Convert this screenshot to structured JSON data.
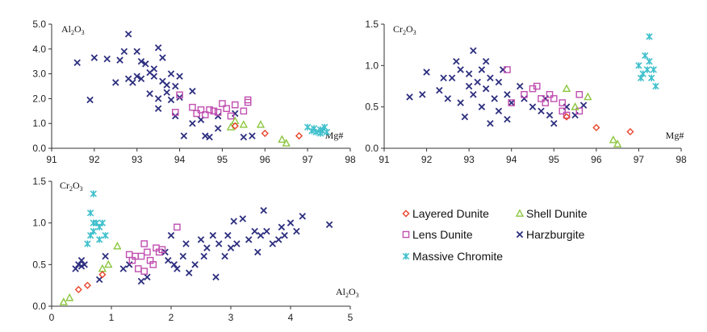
{
  "series_styles": {
    "layered": {
      "label": "Layered Dunite",
      "color": "#e8452a",
      "shape": "diamond"
    },
    "shell": {
      "label": "Shell Dunite",
      "color": "#8cc63f",
      "shape": "triangle"
    },
    "lens": {
      "label": "Lens Dunite",
      "color": "#c04fb0",
      "shape": "square"
    },
    "harz": {
      "label": "Harzburgite",
      "color": "#2e2f7f",
      "shape": "x"
    },
    "chromite": {
      "label": "Massive Chromite",
      "color": "#3fc0cc",
      "shape": "asterisk"
    }
  },
  "legend_order": [
    [
      "layered",
      "shell"
    ],
    [
      "lens",
      "harz"
    ],
    [
      "chromite"
    ]
  ],
  "chart_data": [
    {
      "id": "al2o3-vs-mg",
      "type": "scatter",
      "ylabel_main": "Al",
      "ylabel_sub1": "2",
      "ylabel_mid": "O",
      "ylabel_sub2": "3",
      "xlabel": "Mg#",
      "xlim": [
        91,
        98
      ],
      "ylim": [
        0,
        5
      ],
      "xticks": [
        "91",
        "92",
        "93",
        "94",
        "95",
        "96",
        "97",
        "98"
      ],
      "yticks": [
        "0.0",
        "1.0",
        "2.0",
        "3.0",
        "4.0",
        "5.0"
      ],
      "series": {
        "harz": [
          [
            91.6,
            3.45
          ],
          [
            91.9,
            1.95
          ],
          [
            92.0,
            3.65
          ],
          [
            92.3,
            3.6
          ],
          [
            92.5,
            2.65
          ],
          [
            92.6,
            3.55
          ],
          [
            92.7,
            3.9
          ],
          [
            92.8,
            2.8
          ],
          [
            92.8,
            4.6
          ],
          [
            92.9,
            2.65
          ],
          [
            93.0,
            3.9
          ],
          [
            93.0,
            2.9
          ],
          [
            93.1,
            3.5
          ],
          [
            93.1,
            2.8
          ],
          [
            93.2,
            3.4
          ],
          [
            93.3,
            3.05
          ],
          [
            93.3,
            2.2
          ],
          [
            93.4,
            3.2
          ],
          [
            93.4,
            2.9
          ],
          [
            93.5,
            4.05
          ],
          [
            93.5,
            2.0
          ],
          [
            93.6,
            3.65
          ],
          [
            93.6,
            2.7
          ],
          [
            93.5,
            1.6
          ],
          [
            93.7,
            2.55
          ],
          [
            93.7,
            2.25
          ],
          [
            93.8,
            3.0
          ],
          [
            93.8,
            1.95
          ],
          [
            93.9,
            2.5
          ],
          [
            93.9,
            1.3
          ],
          [
            94.0,
            2.9
          ],
          [
            94.0,
            2.05
          ],
          [
            94.1,
            0.5
          ],
          [
            94.3,
            2.3
          ],
          [
            94.3,
            1.0
          ],
          [
            94.5,
            1.15
          ],
          [
            94.6,
            0.5
          ],
          [
            94.7,
            0.45
          ],
          [
            94.9,
            1.3
          ],
          [
            94.9,
            0.8
          ],
          [
            95.3,
            1.4
          ],
          [
            95.5,
            0.45
          ],
          [
            95.7,
            0.5
          ]
        ],
        "lens": [
          [
            93.9,
            1.45
          ],
          [
            94.0,
            2.15
          ],
          [
            94.3,
            1.65
          ],
          [
            94.4,
            1.4
          ],
          [
            94.5,
            1.55
          ],
          [
            94.6,
            1.35
          ],
          [
            94.7,
            1.55
          ],
          [
            94.8,
            1.5
          ],
          [
            94.9,
            1.45
          ],
          [
            95.0,
            1.8
          ],
          [
            95.1,
            1.6
          ],
          [
            95.2,
            1.3
          ],
          [
            95.3,
            1.75
          ],
          [
            95.5,
            1.5
          ],
          [
            95.6,
            1.85
          ],
          [
            95.6,
            1.95
          ]
        ],
        "shell": [
          [
            95.2,
            0.85
          ],
          [
            95.3,
            1.1
          ],
          [
            95.5,
            0.95
          ],
          [
            95.9,
            0.95
          ],
          [
            96.4,
            0.35
          ],
          [
            96.5,
            0.2
          ]
        ],
        "layered": [
          [
            95.3,
            0.9
          ],
          [
            96.0,
            0.6
          ],
          [
            96.8,
            0.5
          ]
        ],
        "chromite": [
          [
            97.0,
            0.85
          ],
          [
            97.1,
            0.7
          ],
          [
            97.15,
            0.8
          ],
          [
            97.2,
            0.65
          ],
          [
            97.3,
            0.75
          ],
          [
            97.35,
            0.7
          ],
          [
            97.4,
            0.85
          ],
          [
            97.45,
            0.65
          ],
          [
            97.3,
            0.6
          ]
        ]
      }
    },
    {
      "id": "cr2o3-vs-mg",
      "type": "scatter",
      "ylabel_main": "Cr",
      "ylabel_sub1": "2",
      "ylabel_mid": "O",
      "ylabel_sub2": "3",
      "xlabel": "Mg#",
      "xlim": [
        91,
        98
      ],
      "ylim": [
        0,
        1.5
      ],
      "xticks": [
        "91",
        "92",
        "93",
        "94",
        "95",
        "96",
        "97",
        "98"
      ],
      "yticks": [
        "0.0",
        "0.5",
        "1.0",
        "1.5"
      ],
      "series": {
        "harz": [
          [
            91.6,
            0.62
          ],
          [
            91.9,
            0.65
          ],
          [
            92.0,
            0.92
          ],
          [
            92.3,
            0.7
          ],
          [
            92.4,
            0.85
          ],
          [
            92.5,
            0.6
          ],
          [
            92.6,
            0.85
          ],
          [
            92.7,
            1.05
          ],
          [
            92.8,
            0.95
          ],
          [
            92.8,
            0.55
          ],
          [
            92.9,
            0.38
          ],
          [
            93.0,
            0.75
          ],
          [
            93.0,
            0.9
          ],
          [
            93.1,
            1.18
          ],
          [
            93.1,
            0.65
          ],
          [
            93.2,
            0.8
          ],
          [
            93.3,
            0.5
          ],
          [
            93.3,
            0.95
          ],
          [
            93.4,
            1.05
          ],
          [
            93.4,
            0.72
          ],
          [
            93.5,
            0.85
          ],
          [
            93.5,
            0.3
          ],
          [
            93.6,
            0.6
          ],
          [
            93.7,
            0.8
          ],
          [
            93.7,
            0.45
          ],
          [
            93.8,
            0.95
          ],
          [
            93.9,
            0.65
          ],
          [
            93.9,
            0.35
          ],
          [
            94.0,
            0.55
          ],
          [
            94.2,
            0.75
          ],
          [
            94.3,
            0.6
          ],
          [
            94.5,
            0.5
          ],
          [
            94.7,
            0.45
          ],
          [
            94.8,
            0.6
          ],
          [
            94.9,
            0.4
          ],
          [
            95.0,
            0.3
          ],
          [
            95.3,
            0.5
          ],
          [
            95.5,
            0.4
          ],
          [
            95.7,
            0.52
          ]
        ],
        "lens": [
          [
            93.9,
            0.95
          ],
          [
            94.0,
            0.55
          ],
          [
            94.3,
            0.65
          ],
          [
            94.5,
            0.72
          ],
          [
            94.6,
            0.75
          ],
          [
            94.7,
            0.6
          ],
          [
            94.8,
            0.55
          ],
          [
            94.9,
            0.65
          ],
          [
            95.0,
            0.6
          ],
          [
            95.2,
            0.55
          ],
          [
            95.2,
            0.45
          ],
          [
            95.3,
            0.4
          ],
          [
            95.6,
            0.45
          ],
          [
            95.6,
            0.65
          ]
        ],
        "shell": [
          [
            95.3,
            0.72
          ],
          [
            95.5,
            0.5
          ],
          [
            95.8,
            0.62
          ],
          [
            96.4,
            0.1
          ],
          [
            96.5,
            0.05
          ]
        ],
        "layered": [
          [
            95.3,
            0.38
          ],
          [
            96.0,
            0.25
          ],
          [
            96.8,
            0.2
          ]
        ],
        "chromite": [
          [
            97.0,
            1.0
          ],
          [
            97.05,
            0.85
          ],
          [
            97.1,
            0.9
          ],
          [
            97.15,
            1.12
          ],
          [
            97.2,
            0.95
          ],
          [
            97.25,
            1.05
          ],
          [
            97.3,
            0.85
          ],
          [
            97.35,
            0.95
          ],
          [
            97.4,
            0.75
          ],
          [
            97.25,
            1.35
          ]
        ]
      }
    },
    {
      "id": "cr2o3-vs-al2o3",
      "type": "scatter",
      "ylabel_main": "Cr",
      "ylabel_sub1": "2",
      "ylabel_mid": "O",
      "ylabel_sub2": "3",
      "xlabel_main": "Al",
      "xlabel_sub1": "2",
      "xlabel_mid": "O",
      "xlabel_sub2": "3",
      "xlim": [
        0,
        5
      ],
      "ylim": [
        0,
        1.5
      ],
      "xticks": [
        "0",
        "1",
        "2",
        "3",
        "4",
        "5"
      ],
      "yticks": [
        "0.0",
        "0.5",
        "1.0",
        "1.5"
      ],
      "series": {
        "harz": [
          [
            0.4,
            0.45
          ],
          [
            0.45,
            0.5
          ],
          [
            0.5,
            0.48
          ],
          [
            0.5,
            0.55
          ],
          [
            0.55,
            0.5
          ],
          [
            0.8,
            0.32
          ],
          [
            0.9,
            0.6
          ],
          [
            1.2,
            0.45
          ],
          [
            1.3,
            0.5
          ],
          [
            1.5,
            0.3
          ],
          [
            1.6,
            0.35
          ],
          [
            1.9,
            0.65
          ],
          [
            1.95,
            0.55
          ],
          [
            2.0,
            0.85
          ],
          [
            2.05,
            0.5
          ],
          [
            2.1,
            0.45
          ],
          [
            2.2,
            0.6
          ],
          [
            2.25,
            0.75
          ],
          [
            2.3,
            0.4
          ],
          [
            2.4,
            0.5
          ],
          [
            2.5,
            0.8
          ],
          [
            2.55,
            0.6
          ],
          [
            2.6,
            0.7
          ],
          [
            2.7,
            0.85
          ],
          [
            2.75,
            0.35
          ],
          [
            2.8,
            0.75
          ],
          [
            2.9,
            0.6
          ],
          [
            2.95,
            0.85
          ],
          [
            3.0,
            0.7
          ],
          [
            3.05,
            1.02
          ],
          [
            3.1,
            0.75
          ],
          [
            3.2,
            1.05
          ],
          [
            3.3,
            0.8
          ],
          [
            3.4,
            0.9
          ],
          [
            3.45,
            0.65
          ],
          [
            3.5,
            0.85
          ],
          [
            3.55,
            1.15
          ],
          [
            3.6,
            0.9
          ],
          [
            3.7,
            0.75
          ],
          [
            3.8,
            0.8
          ],
          [
            3.85,
            0.95
          ],
          [
            3.9,
            0.85
          ],
          [
            4.0,
            1.0
          ],
          [
            4.1,
            0.9
          ],
          [
            4.2,
            1.08
          ],
          [
            4.65,
            0.98
          ]
        ],
        "lens": [
          [
            1.3,
            0.62
          ],
          [
            1.35,
            0.55
          ],
          [
            1.4,
            0.6
          ],
          [
            1.45,
            0.45
          ],
          [
            1.5,
            0.6
          ],
          [
            1.55,
            0.42
          ],
          [
            1.55,
            0.75
          ],
          [
            1.6,
            0.65
          ],
          [
            1.65,
            0.55
          ],
          [
            1.7,
            0.5
          ],
          [
            1.75,
            0.7
          ],
          [
            1.8,
            0.65
          ],
          [
            1.85,
            0.68
          ],
          [
            2.1,
            0.95
          ]
        ],
        "shell": [
          [
            0.2,
            0.05
          ],
          [
            0.3,
            0.1
          ],
          [
            0.85,
            0.45
          ],
          [
            0.95,
            0.5
          ],
          [
            1.1,
            0.72
          ]
        ],
        "layered": [
          [
            0.45,
            0.2
          ],
          [
            0.6,
            0.25
          ],
          [
            0.85,
            0.38
          ]
        ],
        "chromite": [
          [
            0.6,
            0.75
          ],
          [
            0.65,
            0.85
          ],
          [
            0.7,
            1.0
          ],
          [
            0.7,
            0.9
          ],
          [
            0.75,
            1.0
          ],
          [
            0.8,
            0.95
          ],
          [
            0.8,
            0.8
          ],
          [
            0.85,
            1.0
          ],
          [
            0.9,
            0.85
          ],
          [
            0.7,
            1.35
          ],
          [
            0.65,
            1.12
          ]
        ]
      }
    }
  ]
}
